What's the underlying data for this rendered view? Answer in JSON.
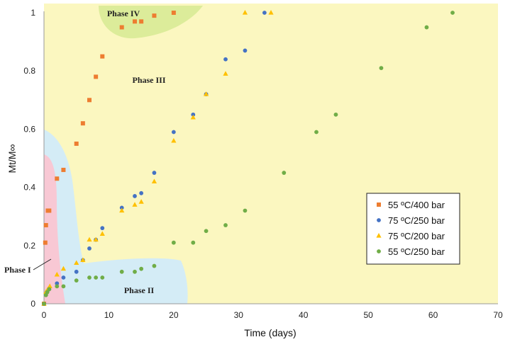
{
  "chart_data": {
    "type": "scatter",
    "xlabel": "Time (days)",
    "ylabel": "Mt/M∞",
    "xlim": [
      0,
      70
    ],
    "ylim": [
      0,
      1
    ],
    "xticks": [
      0,
      10,
      20,
      30,
      40,
      50,
      60,
      70
    ],
    "yticks": [
      0,
      0.2,
      0.4,
      0.6,
      0.8,
      1
    ],
    "ytick_labels": [
      "0",
      "0.2",
      "0.4",
      "0.6",
      "0.8",
      "1"
    ],
    "grid": false,
    "legend_position": "right",
    "regions": [
      {
        "name": "Phase I",
        "color": "#f8c8d4"
      },
      {
        "name": "Phase II",
        "color": "#d4ecf6"
      },
      {
        "name": "Phase III",
        "color": "#fbf7c0"
      },
      {
        "name": "Phase IV",
        "color": "#dcec9a"
      }
    ],
    "series": [
      {
        "name": "55 ºC/400 bar",
        "marker": "square",
        "color": "#ed7d31",
        "x": [
          0,
          0.2,
          0.3,
          0.6,
          0.8,
          2,
          3,
          5,
          6,
          7,
          8,
          9,
          12,
          14,
          15,
          17,
          20
        ],
        "y": [
          0,
          0.21,
          0.27,
          0.32,
          0.32,
          0.43,
          0.46,
          0.55,
          0.62,
          0.7,
          0.78,
          0.85,
          0.95,
          0.97,
          0.97,
          0.99,
          1.0
        ]
      },
      {
        "name": "75 ºC/250 bar",
        "marker": "circle",
        "color": "#4472c4",
        "x": [
          0,
          0.3,
          0.5,
          0.8,
          2,
          3,
          5,
          6,
          7,
          8,
          9,
          12,
          14,
          15,
          17,
          20,
          23,
          25,
          28,
          31,
          34
        ],
        "y": [
          0,
          0.03,
          0.04,
          0.05,
          0.07,
          0.09,
          0.11,
          0.15,
          0.19,
          0.22,
          0.26,
          0.33,
          0.37,
          0.38,
          0.45,
          0.59,
          0.65,
          0.72,
          0.84,
          0.87,
          1.0
        ]
      },
      {
        "name": "75 ºC/200 bar",
        "marker": "triangle",
        "color": "#ffc000",
        "x": [
          0,
          0.3,
          0.6,
          0.9,
          2,
          3,
          5,
          6,
          7,
          8,
          9,
          12,
          14,
          15,
          17,
          20,
          23,
          25,
          28,
          31,
          35
        ],
        "y": [
          0,
          0.04,
          0.05,
          0.06,
          0.1,
          0.12,
          0.14,
          0.15,
          0.22,
          0.22,
          0.24,
          0.32,
          0.34,
          0.35,
          0.42,
          0.56,
          0.64,
          0.72,
          0.79,
          1.0,
          1.0
        ]
      },
      {
        "name": "55 ºC/250 bar",
        "marker": "circle",
        "color": "#70ad47",
        "x": [
          0,
          0.3,
          0.5,
          0.8,
          2,
          3,
          5,
          7,
          8,
          9,
          12,
          14,
          15,
          17,
          20,
          23,
          25,
          28,
          31,
          37,
          42,
          45,
          52,
          59,
          63
        ],
        "y": [
          0,
          0.03,
          0.04,
          0.05,
          0.06,
          0.06,
          0.08,
          0.09,
          0.09,
          0.09,
          0.11,
          0.11,
          0.12,
          0.13,
          0.21,
          0.21,
          0.25,
          0.27,
          0.32,
          0.45,
          0.59,
          0.65,
          0.81,
          0.95,
          1.0
        ]
      }
    ]
  }
}
